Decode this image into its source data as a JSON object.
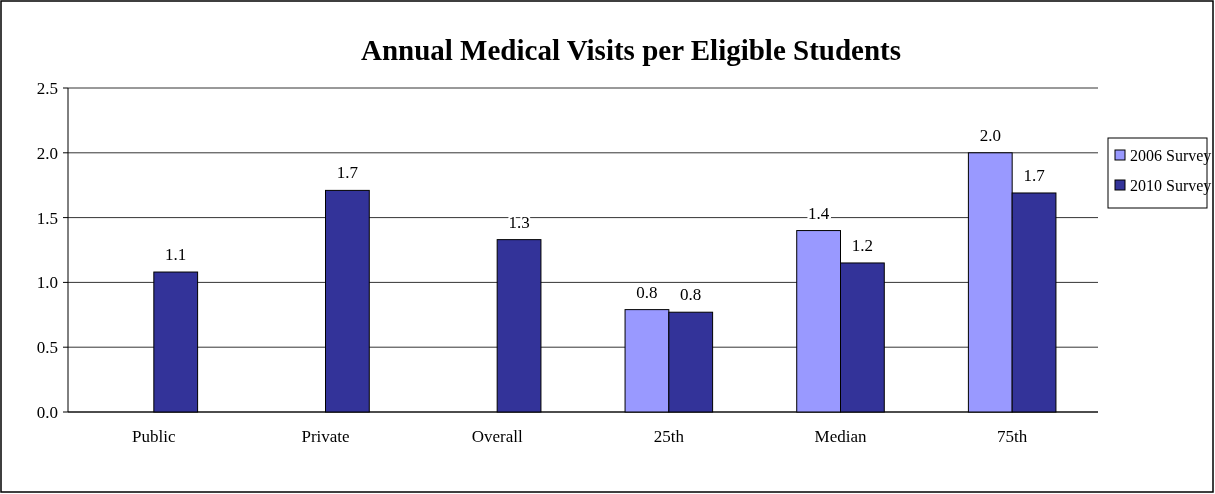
{
  "chart_data": {
    "type": "bar",
    "title": "Annual Medical Visits per Eligible Students",
    "categories": [
      "Public",
      "Private",
      "Overall",
      "25th",
      "Median",
      "75th"
    ],
    "series": [
      {
        "name": "2006 Survey",
        "color": "#9999ff",
        "values": [
          null,
          null,
          null,
          0.79,
          1.4,
          2.0
        ],
        "value_labels": [
          null,
          null,
          null,
          "0.8",
          "1.4",
          "2.0"
        ]
      },
      {
        "name": "2010 Survey",
        "color": "#333399",
        "values": [
          1.08,
          1.71,
          1.33,
          0.77,
          1.15,
          1.69
        ],
        "value_labels": [
          "1.1",
          "1.7",
          "1.3",
          "0.8",
          "1.2",
          "1.7"
        ]
      }
    ],
    "ylim": [
      0,
      2.5
    ],
    "yticks": [
      {
        "value": 0,
        "label": "0.0"
      },
      {
        "value": 0.5,
        "label": "0.5"
      },
      {
        "value": 1,
        "label": "1.0"
      },
      {
        "value": 1.5,
        "label": "1.5"
      },
      {
        "value": 2,
        "label": "2.0"
      },
      {
        "value": 2.5,
        "label": "2.5"
      }
    ],
    "grid": "y",
    "legend": "right"
  }
}
